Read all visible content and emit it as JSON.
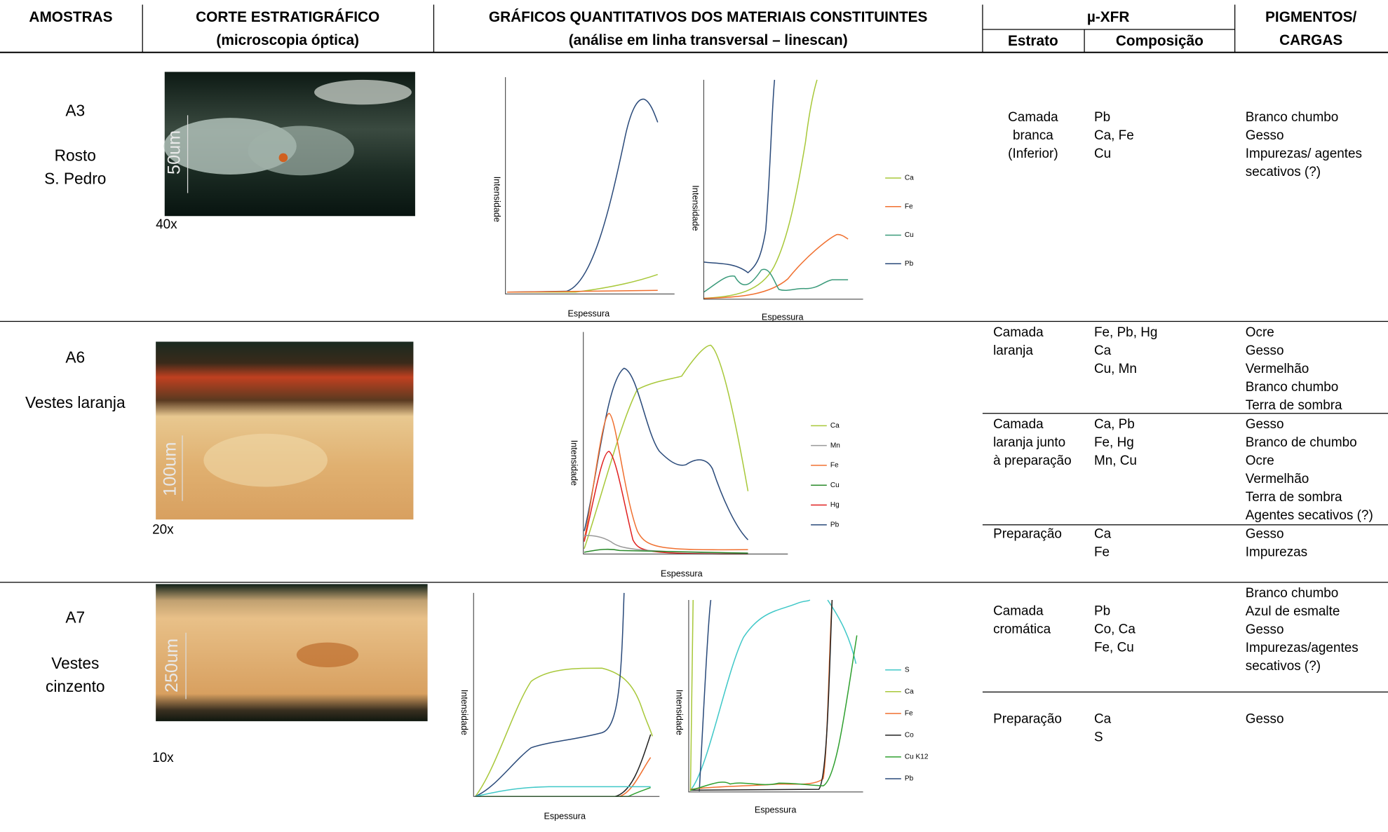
{
  "header": {
    "amostras": "AMOSTRAS",
    "corte": [
      "CORTE ESTRATIGRÁFICO",
      "(microscopia óptica)"
    ],
    "graficos": [
      "GRÁFICOS QUANTITATIVOS DOS MATERIAIS CONSTITUINTES",
      "(análise em linha transversal – linescan)"
    ],
    "xfr": "µ-XFR",
    "estrato": "Estrato",
    "composicao": "Composição",
    "pigmentos": [
      "PIGMENTOS/",
      "CARGAS"
    ]
  },
  "samples": [
    {
      "id": "A3",
      "name": [
        "Rosto",
        "S. Pedro"
      ],
      "magnification": "40x",
      "scale_bar": "50um",
      "charts": [
        {
          "x_label": "Espessura",
          "y_label": "Intensidade"
        },
        {
          "x_label": "Espessura",
          "y_label": "Intensidade",
          "legend": [
            {
              "name": "Ca",
              "color": "#a8c83a"
            },
            {
              "name": "Fe",
              "color": "#f07030"
            },
            {
              "name": "Cu",
              "color": "#3a9a7a"
            },
            {
              "name": "Pb",
              "color": "#2a4a7a"
            }
          ]
        }
      ],
      "layers": [
        {
          "estrato": [
            "Camada",
            "branca",
            "(Inferior)"
          ],
          "composicao": [
            "Pb",
            "Ca, Fe",
            "Cu"
          ],
          "pigmentos": [
            "Branco chumbo",
            "Gesso",
            "Impurezas/ agentes",
            "secativos (?)"
          ]
        }
      ]
    },
    {
      "id": "A6",
      "name": [
        "Vestes laranja"
      ],
      "magnification": "20x",
      "scale_bar": "100um",
      "charts": [
        {
          "x_label": "Espessura",
          "y_label": "Intensidade",
          "legend": [
            {
              "name": "Ca",
              "color": "#a8c83a"
            },
            {
              "name": "Mn",
              "color": "#999999"
            },
            {
              "name": "Fe",
              "color": "#f07030"
            },
            {
              "name": "Cu",
              "color": "#2a8a2a"
            },
            {
              "name": "Hg",
              "color": "#e02020"
            },
            {
              "name": "Pb",
              "color": "#2a4a7a"
            }
          ]
        }
      ],
      "layers": [
        {
          "estrato": [
            "Camada",
            "laranja"
          ],
          "composicao": [
            "Fe, Pb, Hg",
            "Ca",
            "Cu, Mn"
          ],
          "pigmentos": [
            "Ocre",
            "Gesso",
            "Vermelhão",
            "Branco chumbo",
            "Terra de sombra"
          ]
        },
        {
          "estrato": [
            "Camada",
            "laranja junto",
            "à preparação"
          ],
          "composicao": [
            "Ca, Pb",
            "Fe, Hg",
            "Mn, Cu"
          ],
          "pigmentos": [
            "Gesso",
            "Branco de chumbo",
            "Ocre",
            "Vermelhão",
            "Terra de sombra",
            "Agentes secativos (?)"
          ]
        },
        {
          "estrato": [
            "Preparação"
          ],
          "composicao": [
            "Ca",
            "Fe"
          ],
          "pigmentos": [
            "Gesso",
            "Impurezas"
          ]
        }
      ]
    },
    {
      "id": "A7",
      "name": [
        "Vestes",
        "cinzento"
      ],
      "magnification": "10x",
      "scale_bar": "250um",
      "charts": [
        {
          "x_label": "Espessura",
          "y_label": "Intensidade"
        },
        {
          "x_label": "Espessura",
          "y_label": "Intensidade",
          "legend": [
            {
              "name": "S",
              "color": "#40c8c8"
            },
            {
              "name": "Ca",
              "color": "#a8c83a"
            },
            {
              "name": "Fe",
              "color": "#f07030"
            },
            {
              "name": "Co",
              "color": "#222222"
            },
            {
              "name": "Cu K12",
              "color": "#30a030"
            },
            {
              "name": "Pb",
              "color": "#2a4a7a"
            }
          ]
        }
      ],
      "layers": [
        {
          "estrato": [
            "Camada",
            "cromática"
          ],
          "composicao": [
            "Pb",
            "Co, Ca",
            "Fe, Cu"
          ],
          "pigmentos": [
            "Branco chumbo",
            "Azul de esmalte",
            "Gesso",
            "Impurezas/agentes",
            "secativos (?)"
          ]
        },
        {
          "estrato": [
            "Preparação"
          ],
          "composicao": [
            "Ca",
            "S"
          ],
          "pigmentos": [
            "Gesso"
          ]
        }
      ]
    }
  ]
}
